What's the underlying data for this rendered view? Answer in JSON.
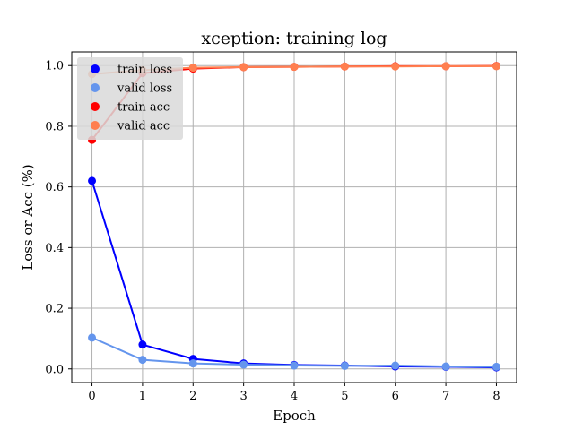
{
  "chart_data": {
    "type": "line",
    "title": "xception: training log",
    "xlabel": "Epoch",
    "ylabel": "Loss or Acc (%)",
    "x": [
      0,
      1,
      2,
      3,
      4,
      5,
      6,
      7,
      8
    ],
    "xlim": [
      -0.4,
      8.4
    ],
    "ylim": [
      -0.045,
      1.045
    ],
    "xticks": [
      "0",
      "1",
      "2",
      "3",
      "4",
      "5",
      "6",
      "7",
      "8"
    ],
    "yticks": [
      "0.0",
      "0.2",
      "0.4",
      "0.6",
      "0.8",
      "1.0"
    ],
    "grid": true,
    "legend_position": "top-left",
    "series": [
      {
        "name": "train loss",
        "color": "#0000ff",
        "values": [
          0.62,
          0.08,
          0.033,
          0.018,
          0.013,
          0.011,
          0.008,
          0.007,
          0.005
        ]
      },
      {
        "name": "valid loss",
        "color": "#6495ed",
        "values": [
          0.103,
          0.03,
          0.018,
          0.014,
          0.011,
          0.01,
          0.011,
          0.008,
          0.007
        ]
      },
      {
        "name": "train acc",
        "color": "#ff0000",
        "values": [
          0.755,
          0.975,
          0.99,
          0.995,
          0.996,
          0.997,
          0.998,
          0.998,
          0.999
        ]
      },
      {
        "name": "valid acc",
        "color": "#ff7f50",
        "values": [
          0.972,
          0.985,
          0.993,
          0.995,
          0.996,
          0.997,
          0.997,
          0.998,
          0.998
        ]
      }
    ]
  }
}
